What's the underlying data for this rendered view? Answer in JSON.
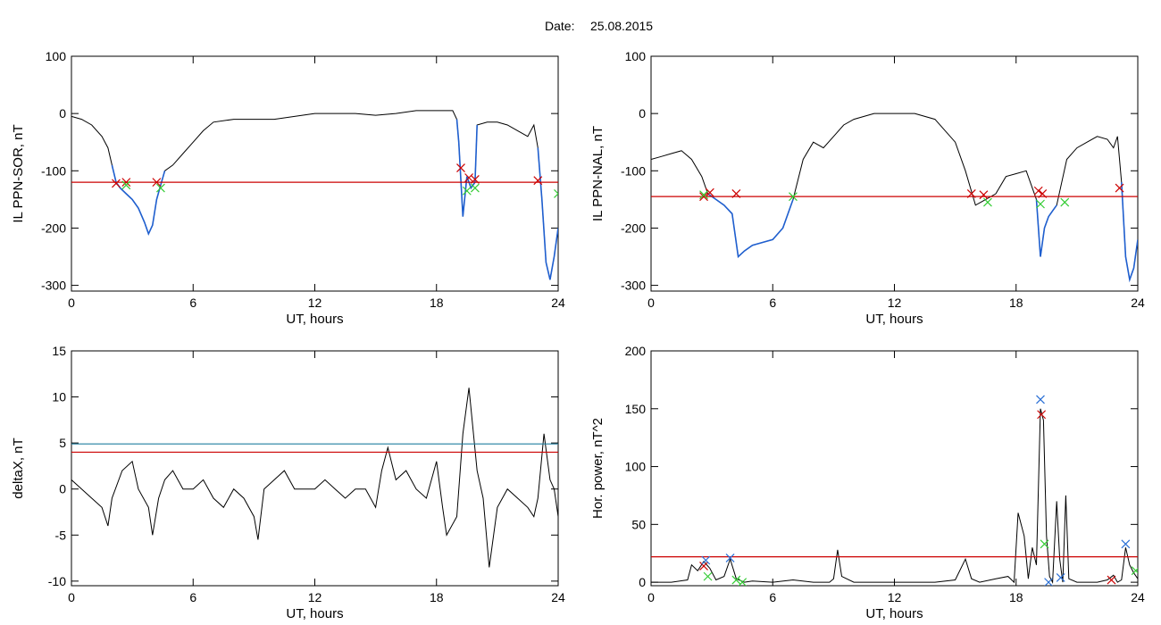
{
  "page": {
    "date_label": "Date:",
    "date_value": "25.08.2015"
  },
  "colors": {
    "curve": "#000000",
    "threshold_red": "#cc0000",
    "threshold_teal": "#1f7f9f",
    "highlight_blue": "#1f5fcf",
    "marker_red": "#cc0000",
    "marker_green": "#33cc33",
    "marker_blue": "#2a6fd6"
  },
  "chart_data": [
    {
      "id": "p1",
      "type": "line",
      "xlabel": "UT, hours",
      "ylabel": "IL PPN-SOR, nT",
      "xlim": [
        0,
        24
      ],
      "ylim": [
        -310,
        100
      ],
      "xticks": [
        0,
        6,
        12,
        18,
        24
      ],
      "yticks": [
        100,
        0,
        -100,
        -200,
        -300
      ],
      "x": [
        0,
        0.5,
        1,
        1.5,
        1.8,
        2.0,
        2.2,
        2.4,
        2.7,
        3.0,
        3.3,
        3.6,
        3.8,
        4.0,
        4.2,
        4.4,
        4.6,
        5.0,
        5.5,
        6.0,
        6.5,
        7.0,
        8.0,
        9.0,
        10.0,
        11.0,
        12.0,
        13.0,
        14.0,
        15.0,
        16.0,
        17.0,
        18.0,
        18.8,
        19.0,
        19.1,
        19.3,
        19.5,
        19.7,
        19.9,
        20.0,
        20.5,
        21.0,
        21.5,
        22.0,
        22.5,
        22.8,
        23.0,
        23.2,
        23.4,
        23.6,
        23.8,
        24.0
      ],
      "y": [
        -5,
        -10,
        -20,
        -40,
        -60,
        -90,
        -120,
        -130,
        -140,
        -150,
        -165,
        -190,
        -210,
        -195,
        -150,
        -125,
        -100,
        -90,
        -70,
        -50,
        -30,
        -15,
        -10,
        -10,
        -10,
        -5,
        0,
        0,
        0,
        -3,
        0,
        5,
        5,
        5,
        -10,
        -50,
        -180,
        -110,
        -130,
        -120,
        -20,
        -15,
        -15,
        -20,
        -30,
        -40,
        -20,
        -60,
        -150,
        -260,
        -290,
        -250,
        -200
      ],
      "highlights": [
        {
          "x0": 2.0,
          "x1": 4.6
        },
        {
          "x0": 19.0,
          "x1": 20.0
        },
        {
          "x0": 23.0,
          "x1": 24.0
        }
      ],
      "thresholds": [
        {
          "y": -120,
          "color": "red"
        }
      ],
      "markers": [
        {
          "x": 2.2,
          "y": -122,
          "color": "red"
        },
        {
          "x": 2.7,
          "y": -120,
          "color": "red"
        },
        {
          "x": 4.2,
          "y": -120,
          "color": "red"
        },
        {
          "x": 2.7,
          "y": -125,
          "color": "green"
        },
        {
          "x": 4.4,
          "y": -130,
          "color": "green"
        },
        {
          "x": 19.2,
          "y": -95,
          "color": "red"
        },
        {
          "x": 19.6,
          "y": -112,
          "color": "red"
        },
        {
          "x": 19.9,
          "y": -115,
          "color": "red"
        },
        {
          "x": 19.5,
          "y": -135,
          "color": "green"
        },
        {
          "x": 19.9,
          "y": -130,
          "color": "green"
        },
        {
          "x": 23.0,
          "y": -117,
          "color": "red"
        },
        {
          "x": 24.0,
          "y": -140,
          "color": "green"
        }
      ]
    },
    {
      "id": "p2",
      "type": "line",
      "xlabel": "UT, hours",
      "ylabel": "IL PPN-NAL, nT",
      "xlim": [
        0,
        24
      ],
      "ylim": [
        -310,
        100
      ],
      "xticks": [
        0,
        6,
        12,
        18,
        24
      ],
      "yticks": [
        100,
        0,
        -100,
        -200,
        -300
      ],
      "x": [
        0,
        0.5,
        1.0,
        1.5,
        2.0,
        2.5,
        2.8,
        3.2,
        3.6,
        4.0,
        4.3,
        4.6,
        5.0,
        5.5,
        6.0,
        6.5,
        7.0,
        7.5,
        8.0,
        8.5,
        9.0,
        9.5,
        10.0,
        10.5,
        11.0,
        12.0,
        13.0,
        14.0,
        15.0,
        15.5,
        16.0,
        16.5,
        17.0,
        17.5,
        18.0,
        18.5,
        19.0,
        19.2,
        19.4,
        19.6,
        19.8,
        20.0,
        20.5,
        21.0,
        21.5,
        22.0,
        22.5,
        22.8,
        23.0,
        23.2,
        23.4,
        23.6,
        23.8,
        24.0
      ],
      "y": [
        -80,
        -75,
        -70,
        -65,
        -80,
        -110,
        -140,
        -150,
        -160,
        -175,
        -250,
        -240,
        -230,
        -225,
        -220,
        -200,
        -150,
        -80,
        -50,
        -60,
        -40,
        -20,
        -10,
        -5,
        0,
        0,
        0,
        -10,
        -50,
        -100,
        -160,
        -150,
        -140,
        -110,
        -105,
        -100,
        -150,
        -250,
        -200,
        -180,
        -170,
        -160,
        -80,
        -60,
        -50,
        -40,
        -45,
        -60,
        -40,
        -120,
        -250,
        -290,
        -270,
        -220
      ],
      "highlights": [
        {
          "x0": 2.6,
          "x1": 7.0
        },
        {
          "x0": 15.8,
          "x1": 16.4
        },
        {
          "x0": 19.0,
          "x1": 20.2
        },
        {
          "x0": 23.2,
          "x1": 24.0
        }
      ],
      "thresholds": [
        {
          "y": -145,
          "color": "red"
        }
      ],
      "markers": [
        {
          "x": 2.6,
          "y": -145,
          "color": "red"
        },
        {
          "x": 2.9,
          "y": -138,
          "color": "red"
        },
        {
          "x": 4.2,
          "y": -140,
          "color": "red"
        },
        {
          "x": 2.6,
          "y": -142,
          "color": "green"
        },
        {
          "x": 7.0,
          "y": -145,
          "color": "green"
        },
        {
          "x": 15.8,
          "y": -140,
          "color": "red"
        },
        {
          "x": 16.4,
          "y": -142,
          "color": "red"
        },
        {
          "x": 16.6,
          "y": -155,
          "color": "green"
        },
        {
          "x": 19.1,
          "y": -135,
          "color": "red"
        },
        {
          "x": 19.3,
          "y": -140,
          "color": "red"
        },
        {
          "x": 19.2,
          "y": -158,
          "color": "green"
        },
        {
          "x": 20.4,
          "y": -155,
          "color": "green"
        },
        {
          "x": 23.1,
          "y": -130,
          "color": "red"
        }
      ]
    },
    {
      "id": "p3",
      "type": "line",
      "xlabel": "UT, hours",
      "ylabel": "deltaX, nT",
      "xlim": [
        0,
        24
      ],
      "ylim": [
        -10.5,
        15
      ],
      "xticks": [
        0,
        6,
        12,
        18,
        24
      ],
      "yticks": [
        15,
        10,
        5,
        0,
        -5,
        -10
      ],
      "x": [
        0,
        0.5,
        1.0,
        1.5,
        1.8,
        2.0,
        2.5,
        3.0,
        3.3,
        3.8,
        4.0,
        4.3,
        4.6,
        5.0,
        5.5,
        6.0,
        6.5,
        7.0,
        7.5,
        8.0,
        8.5,
        9.0,
        9.2,
        9.5,
        10.0,
        10.5,
        11.0,
        11.5,
        12.0,
        12.5,
        13.0,
        13.5,
        14.0,
        14.5,
        15.0,
        15.3,
        15.6,
        16.0,
        16.5,
        17.0,
        17.5,
        18.0,
        18.3,
        18.5,
        19.0,
        19.3,
        19.6,
        20.0,
        20.3,
        20.6,
        21.0,
        21.5,
        22.0,
        22.5,
        22.8,
        23.0,
        23.3,
        23.6,
        23.8,
        24.0
      ],
      "y": [
        1,
        0,
        -1,
        -2,
        -4,
        -1,
        2,
        3,
        0,
        -2,
        -5,
        -1,
        1,
        2,
        0,
        0,
        1,
        -1,
        -2,
        0,
        -1,
        -3,
        -5.5,
        0,
        1,
        2,
        0,
        0,
        0,
        1,
        0,
        -1,
        0,
        0,
        -2,
        2,
        4.5,
        1,
        2,
        0,
        -1,
        3,
        -2,
        -5,
        -3,
        6,
        11,
        2,
        -1,
        -8.5,
        -2,
        0,
        -1,
        -2,
        -3,
        -1,
        6,
        1,
        0,
        -3
      ],
      "thresholds": [
        {
          "y": 4.9,
          "color": "teal"
        },
        {
          "y": 4.0,
          "color": "red"
        }
      ],
      "markers": []
    },
    {
      "id": "p4",
      "type": "line",
      "xlabel": "UT, hours",
      "ylabel": "Hor. power, nT^2",
      "xlim": [
        0,
        24
      ],
      "ylim": [
        -3,
        200
      ],
      "xticks": [
        0,
        6,
        12,
        18,
        24
      ],
      "yticks": [
        200,
        150,
        100,
        50,
        0
      ],
      "x": [
        0,
        1.0,
        1.8,
        2.0,
        2.3,
        2.6,
        2.9,
        3.2,
        3.6,
        3.9,
        4.2,
        4.6,
        5.0,
        6.0,
        7.0,
        8.0,
        8.8,
        9.0,
        9.2,
        9.4,
        10.0,
        11.0,
        12.0,
        13.0,
        14.0,
        15.0,
        15.5,
        15.8,
        16.2,
        17.0,
        17.6,
        17.9,
        18.1,
        18.4,
        18.6,
        18.8,
        19.0,
        19.2,
        19.35,
        19.5,
        19.65,
        19.8,
        20.0,
        20.15,
        20.3,
        20.45,
        20.6,
        21.0,
        21.5,
        22.0,
        22.5,
        22.8,
        23.0,
        23.2,
        23.4,
        23.6,
        23.8,
        24.0
      ],
      "y": [
        0,
        0,
        2,
        15,
        10,
        18,
        12,
        2,
        5,
        20,
        3,
        0,
        1,
        0,
        2,
        0,
        0,
        3,
        28,
        5,
        0,
        0,
        0,
        0,
        0,
        2,
        20,
        3,
        0,
        3,
        5,
        0,
        60,
        40,
        3,
        30,
        15,
        150,
        140,
        40,
        5,
        0,
        70,
        20,
        0,
        75,
        3,
        0,
        0,
        0,
        2,
        6,
        0,
        2,
        30,
        15,
        8,
        3
      ],
      "thresholds": [
        {
          "y": 22,
          "color": "red"
        }
      ],
      "markers": [
        {
          "x": 2.6,
          "y": 14,
          "color": "red"
        },
        {
          "x": 2.7,
          "y": 19,
          "color": "blue"
        },
        {
          "x": 2.8,
          "y": 5,
          "color": "green"
        },
        {
          "x": 3.9,
          "y": 21,
          "color": "blue"
        },
        {
          "x": 4.2,
          "y": 2,
          "color": "green"
        },
        {
          "x": 4.5,
          "y": 0,
          "color": "green"
        },
        {
          "x": 19.2,
          "y": 158,
          "color": "blue"
        },
        {
          "x": 19.25,
          "y": 145,
          "color": "red"
        },
        {
          "x": 19.4,
          "y": 33,
          "color": "green"
        },
        {
          "x": 19.6,
          "y": 0,
          "color": "blue"
        },
        {
          "x": 20.2,
          "y": 4,
          "color": "blue"
        },
        {
          "x": 22.7,
          "y": 2,
          "color": "red"
        },
        {
          "x": 23.4,
          "y": 33,
          "color": "blue"
        },
        {
          "x": 23.9,
          "y": 10,
          "color": "green"
        }
      ]
    }
  ]
}
